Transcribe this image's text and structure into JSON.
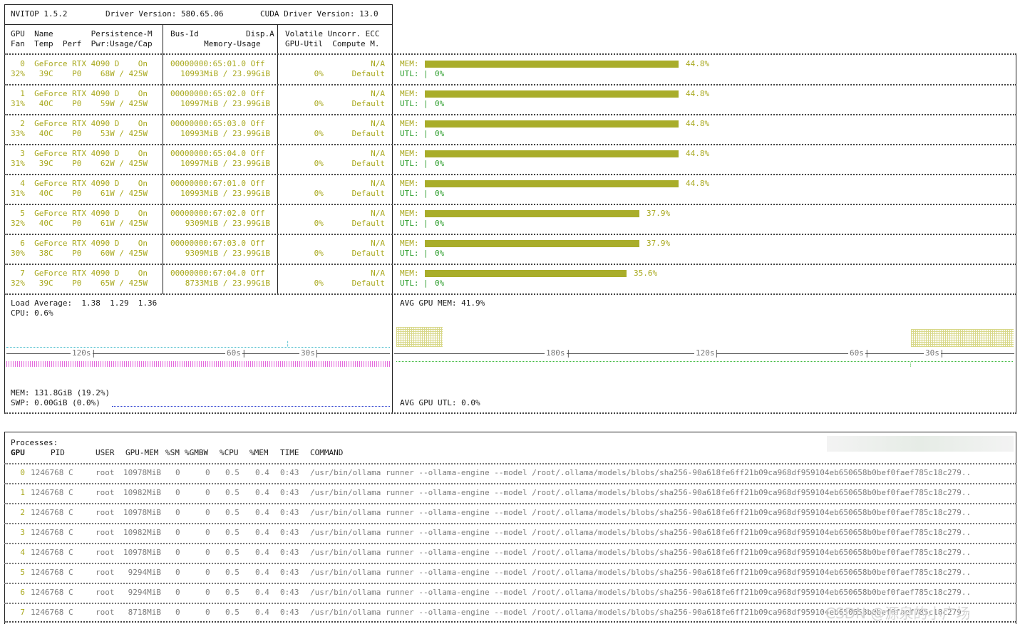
{
  "header": {
    "nvitop": "NVITOP 1.5.2",
    "driver": "Driver Version: 580.65.06",
    "cuda": "CUDA Driver Version: 13.0"
  },
  "columns": {
    "c1_line1": "GPU  Name        Persistence-M",
    "c1_line2": "Fan  Temp  Perf  Pwr:Usage/Cap",
    "c2_line1": "Bus-Id          Disp.A",
    "c2_line2": "     Memory-Usage",
    "c3_line1": "Volatile Uncorr. ECC",
    "c3_line2": "GPU-Util  Compute M."
  },
  "gpus": [
    {
      "l1c1": "  0  GeForce RTX 4090 D    On",
      "l2c1": "32%   39C    P0    68W / 425W",
      "l1c2": "00000000:65:01.0 Off",
      "l2c2": "10993MiB / 23.99GiB",
      "l1c3": "N/A",
      "l2c3": "  0%      Default",
      "mem": "MEM:",
      "mem_pct": "44.8%",
      "mem_frac": 0.448,
      "utl": "UTL:",
      "utl_bar": "|",
      "utl_pct": "0%"
    },
    {
      "l1c1": "  1  GeForce RTX 4090 D    On",
      "l2c1": "31%   40C    P0    59W / 425W",
      "l1c2": "00000000:65:02.0 Off",
      "l2c2": "10997MiB / 23.99GiB",
      "l1c3": "N/A",
      "l2c3": "  0%      Default",
      "mem": "MEM:",
      "mem_pct": "44.8%",
      "mem_frac": 0.448,
      "utl": "UTL:",
      "utl_bar": "|",
      "utl_pct": "0%"
    },
    {
      "l1c1": "  2  GeForce RTX 4090 D    On",
      "l2c1": "33%   40C    P0    53W / 425W",
      "l1c2": "00000000:65:03.0 Off",
      "l2c2": "10993MiB / 23.99GiB",
      "l1c3": "N/A",
      "l2c3": "  0%      Default",
      "mem": "MEM:",
      "mem_pct": "44.8%",
      "mem_frac": 0.448,
      "utl": "UTL:",
      "utl_bar": "|",
      "utl_pct": "0%"
    },
    {
      "l1c1": "  3  GeForce RTX 4090 D    On",
      "l2c1": "31%   39C    P0    62W / 425W",
      "l1c2": "00000000:65:04.0 Off",
      "l2c2": "10997MiB / 23.99GiB",
      "l1c3": "N/A",
      "l2c3": "  0%      Default",
      "mem": "MEM:",
      "mem_pct": "44.8%",
      "mem_frac": 0.448,
      "utl": "UTL:",
      "utl_bar": "|",
      "utl_pct": "0%"
    },
    {
      "l1c1": "  4  GeForce RTX 4090 D    On",
      "l2c1": "31%   40C    P0    61W / 425W",
      "l1c2": "00000000:67:01.0 Off",
      "l2c2": "10993MiB / 23.99GiB",
      "l1c3": "N/A",
      "l2c3": "  0%      Default",
      "mem": "MEM:",
      "mem_pct": "44.8%",
      "mem_frac": 0.448,
      "utl": "UTL:",
      "utl_bar": "|",
      "utl_pct": "0%"
    },
    {
      "l1c1": "  5  GeForce RTX 4090 D    On",
      "l2c1": "32%   40C    P0    61W / 425W",
      "l1c2": "00000000:67:02.0 Off",
      "l2c2": " 9309MiB / 23.99GiB",
      "l1c3": "N/A",
      "l2c3": "  0%      Default",
      "mem": "MEM:",
      "mem_pct": "37.9%",
      "mem_frac": 0.379,
      "utl": "UTL:",
      "utl_bar": "|",
      "utl_pct": "0%"
    },
    {
      "l1c1": "  6  GeForce RTX 4090 D    On",
      "l2c1": "30%   38C    P0    60W / 425W",
      "l1c2": "00000000:67:03.0 Off",
      "l2c2": " 9309MiB / 23.99GiB",
      "l1c3": "N/A",
      "l2c3": "  0%      Default",
      "mem": "MEM:",
      "mem_pct": "37.9%",
      "mem_frac": 0.379,
      "utl": "UTL:",
      "utl_bar": "|",
      "utl_pct": "0%"
    },
    {
      "l1c1": "  7  GeForce RTX 4090 D    On",
      "l2c1": "32%   39C    P0    65W / 425W",
      "l1c2": "00000000:67:04.0 Off",
      "l2c2": " 8733MiB / 23.99GiB",
      "l1c3": "N/A",
      "l2c3": "  0%      Default",
      "mem": "MEM:",
      "mem_pct": "35.6%",
      "mem_frac": 0.356,
      "utl": "UTL:",
      "utl_bar": "|",
      "utl_pct": "0%"
    }
  ],
  "host": {
    "load": "Load Average:  1.38  1.29  1.36",
    "cpu": "CPU: 0.6%",
    "mem": "MEM: 131.8GiB (19.2%)",
    "swp": "SWP: 0.00GiB (0.0%)",
    "left_ticks": [
      "120s",
      "60s",
      "30s"
    ],
    "avg_gpu_mem": "AVG GPU MEM: 41.9%",
    "avg_gpu_utl": "AVG GPU UTL: 0.0%",
    "right_ticks": [
      "180s",
      "120s",
      "60s",
      "30s"
    ]
  },
  "processes": {
    "title": "Processes:",
    "header": {
      "gpu": "GPU",
      "pid": "PID",
      "user": "USER",
      "gpu_mem": "GPU-MEM",
      "sm": "%SM",
      "gmbw": "%GMBW",
      "cpu": "%CPU",
      "mem": "%MEM",
      "time": "TIME",
      "command": "COMMAND"
    },
    "rows": [
      {
        "gpu": "0",
        "pid": "1246768 C",
        "user": "root",
        "gpu_mem": "10978MiB",
        "sm": "0",
        "gmbw": "0",
        "cpu": "0.5",
        "mem": "0.4",
        "time": "0:43",
        "command": "/usr/bin/ollama runner --ollama-engine --model /root/.ollama/models/blobs/sha256-90a618fe6ff21b09ca968df959104eb650658b0bef0faef785c18c279.."
      },
      {
        "gpu": "1",
        "pid": "1246768 C",
        "user": "root",
        "gpu_mem": "10982MiB",
        "sm": "0",
        "gmbw": "0",
        "cpu": "0.5",
        "mem": "0.4",
        "time": "0:43",
        "command": "/usr/bin/ollama runner --ollama-engine --model /root/.ollama/models/blobs/sha256-90a618fe6ff21b09ca968df959104eb650658b0bef0faef785c18c279.."
      },
      {
        "gpu": "2",
        "pid": "1246768 C",
        "user": "root",
        "gpu_mem": "10978MiB",
        "sm": "0",
        "gmbw": "0",
        "cpu": "0.5",
        "mem": "0.4",
        "time": "0:43",
        "command": "/usr/bin/ollama runner --ollama-engine --model /root/.ollama/models/blobs/sha256-90a618fe6ff21b09ca968df959104eb650658b0bef0faef785c18c279.."
      },
      {
        "gpu": "3",
        "pid": "1246768 C",
        "user": "root",
        "gpu_mem": "10982MiB",
        "sm": "0",
        "gmbw": "0",
        "cpu": "0.5",
        "mem": "0.4",
        "time": "0:43",
        "command": "/usr/bin/ollama runner --ollama-engine --model /root/.ollama/models/blobs/sha256-90a618fe6ff21b09ca968df959104eb650658b0bef0faef785c18c279.."
      },
      {
        "gpu": "4",
        "pid": "1246768 C",
        "user": "root",
        "gpu_mem": "10978MiB",
        "sm": "0",
        "gmbw": "0",
        "cpu": "0.5",
        "mem": "0.4",
        "time": "0:43",
        "command": "/usr/bin/ollama runner --ollama-engine --model /root/.ollama/models/blobs/sha256-90a618fe6ff21b09ca968df959104eb650658b0bef0faef785c18c279.."
      },
      {
        "gpu": "5",
        "pid": "1246768 C",
        "user": "root",
        "gpu_mem": "9294MiB",
        "sm": "0",
        "gmbw": "0",
        "cpu": "0.5",
        "mem": "0.4",
        "time": "0:43",
        "command": "/usr/bin/ollama runner --ollama-engine --model /root/.ollama/models/blobs/sha256-90a618fe6ff21b09ca968df959104eb650658b0bef0faef785c18c279.."
      },
      {
        "gpu": "6",
        "pid": "1246768 C",
        "user": "root",
        "gpu_mem": "9294MiB",
        "sm": "0",
        "gmbw": "0",
        "cpu": "0.5",
        "mem": "0.4",
        "time": "0:43",
        "command": "/usr/bin/ollama runner --ollama-engine --model /root/.ollama/models/blobs/sha256-90a618fe6ff21b09ca968df959104eb650658b0bef0faef785c18c279.."
      },
      {
        "gpu": "7",
        "pid": "1246768 C",
        "user": "root",
        "gpu_mem": "8718MiB",
        "sm": "0",
        "gmbw": "0",
        "cpu": "0.5",
        "mem": "0.4",
        "time": "0:43",
        "command": "/usr/bin/ollama runner --ollama-engine --model /root/.ollama/models/blobs/sha256-90a618fe6ff21b09ca968df959104eb650658b0bef0faef785c18c279.."
      }
    ]
  },
  "watermark": "CSDN @源泉的小广场",
  "colors": {
    "gpu_text": "#a8a81c",
    "mem_bar": "#a9ad2a",
    "utl_text": "#2e9e2e",
    "cpu_history": "#3bb8c8",
    "mem_history": "#e055d8",
    "swp_history": "#2c3fd0"
  }
}
